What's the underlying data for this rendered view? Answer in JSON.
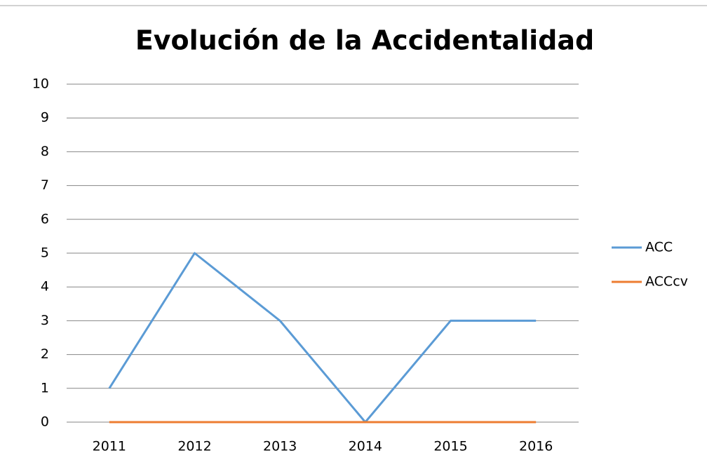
{
  "chart_data": {
    "type": "line",
    "title": "Evolución de la Accidentalidad",
    "categories": [
      "2011",
      "2012",
      "2013",
      "2014",
      "2015",
      "2016"
    ],
    "series": [
      {
        "name": "ACC",
        "color": "#5b9bd5",
        "values": [
          1,
          5,
          3,
          0,
          3,
          3
        ]
      },
      {
        "name": "ACCcv",
        "color": "#ed7d31",
        "values": [
          0,
          0,
          0,
          0,
          0,
          0
        ]
      }
    ],
    "ylim": [
      0,
      10
    ],
    "yticks": [
      0,
      1,
      2,
      3,
      4,
      5,
      6,
      7,
      8,
      9,
      10
    ],
    "grid": true,
    "legend": "right"
  }
}
